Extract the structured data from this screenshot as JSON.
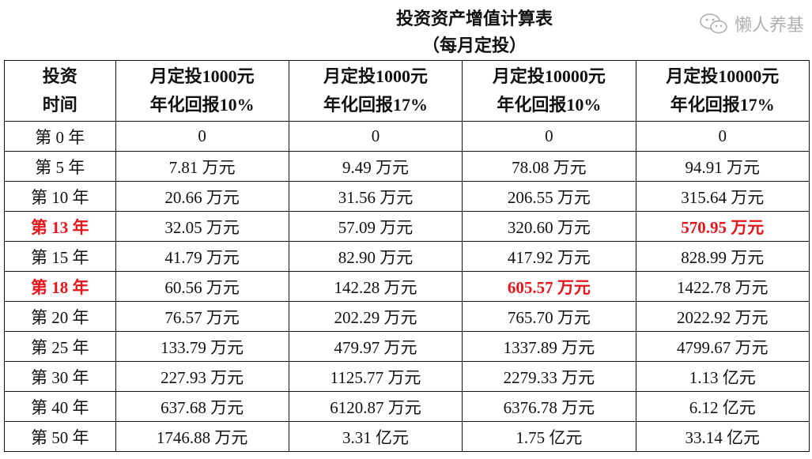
{
  "title": "投资资产增值计算表",
  "subtitle": "（每月定投）",
  "header": {
    "col0": [
      "投资",
      "时间"
    ],
    "cols": [
      [
        "月定投1000元",
        "年化回报10%"
      ],
      [
        "月定投1000元",
        "年化回报17%"
      ],
      [
        "月定投10000元",
        "年化回报10%"
      ],
      [
        "月定投10000元",
        "年化回报17%"
      ]
    ]
  },
  "highlight_color": "#e5151c",
  "rows": [
    {
      "year": "第 0 年",
      "v": [
        "0",
        "0",
        "0",
        "0"
      ],
      "red": []
    },
    {
      "year": "第 5 年",
      "v": [
        "7.81 万元",
        "9.49 万元",
        "78.08 万元",
        "94.91 万元"
      ],
      "red": []
    },
    {
      "year": "第 10 年",
      "v": [
        "20.66 万元",
        "31.56 万元",
        "206.55 万元",
        "315.64 万元"
      ],
      "red": []
    },
    {
      "year": "第 13 年",
      "v": [
        "32.05 万元",
        "57.09 万元",
        "320.60 万元",
        "570.95 万元"
      ],
      "red": [
        "year",
        3
      ]
    },
    {
      "year": "第 15 年",
      "v": [
        "41.79 万元",
        "82.90 万元",
        "417.92 万元",
        "828.99 万元"
      ],
      "red": []
    },
    {
      "year": "第 18 年",
      "v": [
        "60.56 万元",
        "142.28 万元",
        "605.57 万元",
        "1422.78 万元"
      ],
      "red": [
        "year",
        2
      ]
    },
    {
      "year": "第 20 年",
      "v": [
        "76.57 万元",
        "202.29 万元",
        "765.70 万元",
        "2022.92 万元"
      ],
      "red": []
    },
    {
      "year": "第 25 年",
      "v": [
        "133.79 万元",
        "479.97 万元",
        "1337.89 万元",
        "4799.67 万元"
      ],
      "red": []
    },
    {
      "year": "第 30 年",
      "v": [
        "227.93 万元",
        "1125.77 万元",
        "2279.33 万元",
        "1.13 亿元"
      ],
      "red": []
    },
    {
      "year": "第 40 年",
      "v": [
        "637.68 万元",
        "6120.87 万元",
        "6376.78 万元",
        "6.12 亿元"
      ],
      "red": []
    },
    {
      "year": "第 50 年",
      "v": [
        "1746.88 万元",
        "3.31 亿元",
        "1.75 亿元",
        "33.14 亿元"
      ],
      "red": []
    }
  ],
  "watermark": {
    "icon": "wechat-icon",
    "text": "懒人养基"
  }
}
